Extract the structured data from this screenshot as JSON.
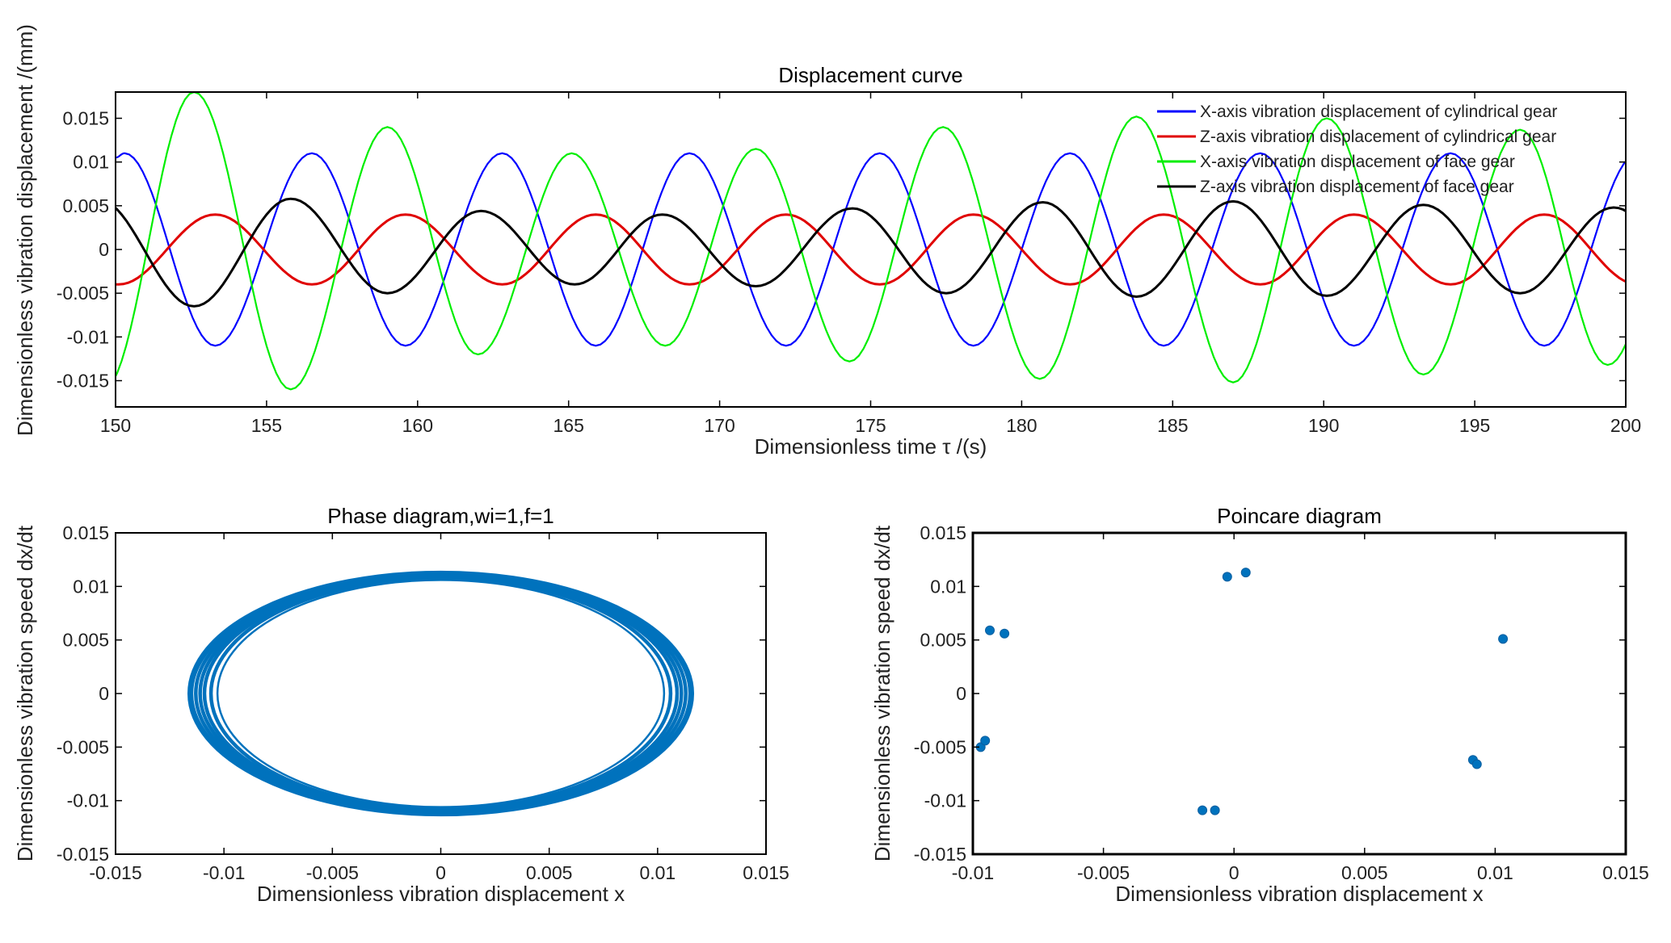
{
  "chart_data": [
    {
      "type": "line",
      "title": "Displacement curve",
      "xlabel": "Dimensionless time τ /(s)",
      "ylabel": "Dimensionless vibration displacement /(mm)",
      "xlim": [
        150,
        200
      ],
      "ylim": [
        -0.018,
        0.018
      ],
      "xticks": [
        150,
        155,
        160,
        165,
        170,
        175,
        180,
        185,
        190,
        195,
        200
      ],
      "xtick_labels": [
        "150",
        "155",
        "160",
        "165",
        "170",
        "175",
        "180",
        "185",
        "190",
        "195",
        "200"
      ],
      "yticks": [
        0.015,
        0.01,
        0.005,
        0,
        -0.005,
        -0.01,
        -0.015
      ],
      "ytick_labels": [
        "0.015",
        "0.01",
        "0.005",
        "0",
        "-0.005",
        "-0.01",
        "-0.015"
      ],
      "legend_position": "top-right",
      "series": [
        {
          "name": "X-axis vibration displacement of cylindrical gear",
          "color": "#0000ff",
          "extrema": [
            [
              150,
              0.0105
            ],
            [
              150.3,
              0.011
            ],
            [
              153.3,
              -0.011
            ],
            [
              156.5,
              0.011
            ],
            [
              159.6,
              -0.011
            ],
            [
              162.8,
              0.011
            ],
            [
              165.9,
              -0.011
            ],
            [
              169.0,
              0.011
            ],
            [
              172.2,
              -0.011
            ],
            [
              175.3,
              0.011
            ],
            [
              178.4,
              -0.011
            ],
            [
              181.6,
              0.011
            ],
            [
              184.7,
              -0.011
            ],
            [
              187.9,
              0.011
            ],
            [
              191.0,
              -0.011
            ],
            [
              194.2,
              0.011
            ],
            [
              197.3,
              -0.011
            ],
            [
              200.4,
              0.011
            ]
          ]
        },
        {
          "name": "Z-axis vibration displacement of cylindrical gear",
          "color": "#e00000",
          "extrema": [
            [
              150,
              -0.004
            ],
            [
              150.1,
              -0.004
            ],
            [
              153.3,
              0.004
            ],
            [
              156.5,
              -0.004
            ],
            [
              159.6,
              0.004
            ],
            [
              162.8,
              -0.004
            ],
            [
              165.9,
              0.004
            ],
            [
              169.0,
              -0.004
            ],
            [
              172.2,
              0.004
            ],
            [
              175.3,
              -0.004
            ],
            [
              178.4,
              0.004
            ],
            [
              181.6,
              -0.004
            ],
            [
              184.7,
              0.004
            ],
            [
              187.9,
              -0.004
            ],
            [
              191.0,
              0.004
            ],
            [
              194.2,
              -0.004
            ],
            [
              197.3,
              0.004
            ],
            [
              200.4,
              -0.004
            ]
          ]
        },
        {
          "name": "X-axis vibration displacement of face gear",
          "color": "#00ee00",
          "extrema": [
            [
              149.6,
              -0.016
            ],
            [
              152.6,
              0.018
            ],
            [
              155.8,
              -0.016
            ],
            [
              159.0,
              0.014
            ],
            [
              162.0,
              -0.012
            ],
            [
              165.1,
              0.011
            ],
            [
              168.2,
              -0.011
            ],
            [
              171.2,
              0.0115
            ],
            [
              174.3,
              -0.0128
            ],
            [
              177.4,
              0.014
            ],
            [
              180.6,
              -0.0148
            ],
            [
              183.8,
              0.0152
            ],
            [
              187.0,
              -0.0152
            ],
            [
              190.1,
              0.015
            ],
            [
              193.3,
              -0.0143
            ],
            [
              196.5,
              0.0137
            ],
            [
              199.4,
              -0.0132
            ],
            [
              202.5,
              0.013
            ]
          ]
        },
        {
          "name": "Z-axis vibration displacement of face gear",
          "color": "#000000",
          "extrema": [
            [
              149.4,
              0.0058
            ],
            [
              152.6,
              -0.0065
            ],
            [
              155.8,
              0.0058
            ],
            [
              159.0,
              -0.005
            ],
            [
              162.1,
              0.0044
            ],
            [
              165.2,
              -0.004
            ],
            [
              168.1,
              0.004
            ],
            [
              171.2,
              -0.0042
            ],
            [
              174.4,
              0.0047
            ],
            [
              177.5,
              -0.005
            ],
            [
              180.7,
              0.0054
            ],
            [
              183.8,
              -0.0054
            ],
            [
              187.0,
              0.0055
            ],
            [
              190.1,
              -0.0053
            ],
            [
              193.3,
              0.0051
            ],
            [
              196.5,
              -0.005
            ],
            [
              199.6,
              0.0048
            ],
            [
              202.7,
              -0.0048
            ]
          ]
        }
      ]
    },
    {
      "type": "line",
      "title": "Phase  diagram,wi=1,f=1",
      "xlabel": "Dimensionless vibration displacement x",
      "ylabel": "Dimensionless vibration speed dx/dt",
      "xlim": [
        -0.015,
        0.015
      ],
      "ylim": [
        -0.015,
        0.015
      ],
      "xticks": [
        -0.015,
        -0.01,
        -0.005,
        0,
        0.005,
        0.01,
        0.015
      ],
      "xtick_labels": [
        "-0.015",
        "-0.01",
        "-0.005",
        "0",
        "0.005",
        "0.01",
        "0.015"
      ],
      "yticks": [
        0.015,
        0.01,
        0.005,
        0,
        -0.005,
        -0.01,
        -0.015
      ],
      "ytick_labels": [
        "0.015",
        "0.01",
        "0.005",
        "0",
        "-0.005",
        "-0.01",
        "-0.015"
      ],
      "color": "#0072bd",
      "orbits": [
        {
          "rx": 0.0103,
          "ry": 0.0106
        },
        {
          "rx": 0.0106,
          "ry": 0.0108
        },
        {
          "rx": 0.0109,
          "ry": 0.0109
        },
        {
          "rx": 0.0111,
          "ry": 0.011
        },
        {
          "rx": 0.0113,
          "ry": 0.0111
        },
        {
          "rx": 0.0115,
          "ry": 0.0112
        },
        {
          "rx": 0.0116,
          "ry": 0.0113
        }
      ]
    },
    {
      "type": "scatter",
      "title": "Poincare diagram",
      "xlabel": "Dimensionless vibration displacement x",
      "ylabel": "Dimensionless vibration speed dx/dt",
      "xlim": [
        -0.01,
        0.015
      ],
      "ylim": [
        -0.015,
        0.015
      ],
      "xticks": [
        -0.01,
        -0.005,
        0,
        0.005,
        0.01,
        0.015
      ],
      "xtick_labels": [
        "-0.01",
        "-0.005",
        "0",
        "0.005",
        "0.01",
        "0.015"
      ],
      "yticks": [
        0.015,
        0.01,
        0.005,
        0,
        -0.005,
        -0.01,
        -0.015
      ],
      "ytick_labels": [
        "0.015",
        "0.01",
        "0.005",
        "0",
        "-0.005",
        "-0.01",
        "-0.015"
      ],
      "color": "#0072bd",
      "points": [
        [
          -0.00026,
          0.0109
        ],
        [
          0.00045,
          0.0113
        ],
        [
          -0.00935,
          0.0059
        ],
        [
          -0.00879,
          0.0056
        ],
        [
          0.0103,
          0.0051
        ],
        [
          -0.0097,
          -0.005
        ],
        [
          -0.00953,
          -0.0044
        ],
        [
          0.00915,
          -0.0062
        ],
        [
          0.0093,
          -0.0066
        ],
        [
          -0.00121,
          -0.0109
        ],
        [
          -0.00073,
          -0.0109
        ]
      ]
    }
  ]
}
